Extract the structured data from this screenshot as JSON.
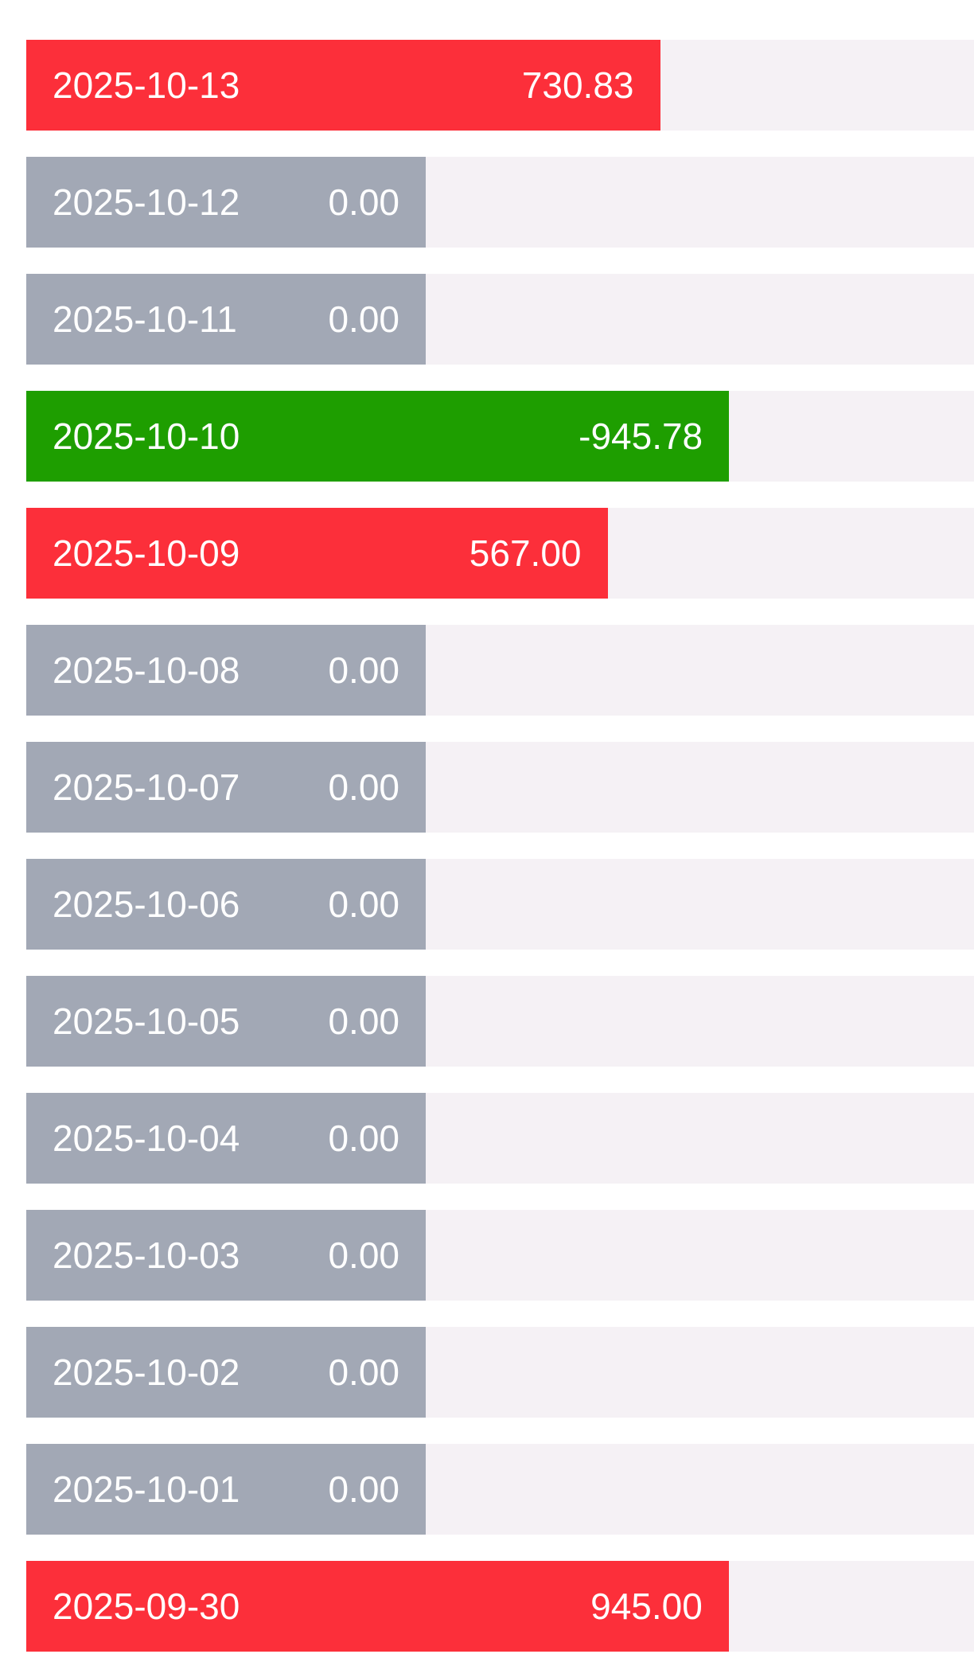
{
  "rows": [
    {
      "date": "2025-10-13",
      "value": 730.83,
      "value_label": "730.83"
    },
    {
      "date": "2025-10-12",
      "value": 0,
      "value_label": "0.00"
    },
    {
      "date": "2025-10-11",
      "value": 0,
      "value_label": "0.00"
    },
    {
      "date": "2025-10-10",
      "value": -945.78,
      "value_label": "-945.78"
    },
    {
      "date": "2025-10-09",
      "value": 567,
      "value_label": "567.00"
    },
    {
      "date": "2025-10-08",
      "value": 0,
      "value_label": "0.00"
    },
    {
      "date": "2025-10-07",
      "value": 0,
      "value_label": "0.00"
    },
    {
      "date": "2025-10-06",
      "value": 0,
      "value_label": "0.00"
    },
    {
      "date": "2025-10-05",
      "value": 0,
      "value_label": "0.00"
    },
    {
      "date": "2025-10-04",
      "value": 0,
      "value_label": "0.00"
    },
    {
      "date": "2025-10-03",
      "value": 0,
      "value_label": "0.00"
    },
    {
      "date": "2025-10-02",
      "value": 0,
      "value_label": "0.00"
    },
    {
      "date": "2025-10-01",
      "value": 0,
      "value_label": "0.00"
    },
    {
      "date": "2025-09-30",
      "value": 945,
      "value_label": "945.00"
    }
  ],
  "colors": {
    "positive": "#fc2f3a",
    "negative": "#1e9e00",
    "zero": "#a2a8b5",
    "track": "#f5f1f5"
  }
}
